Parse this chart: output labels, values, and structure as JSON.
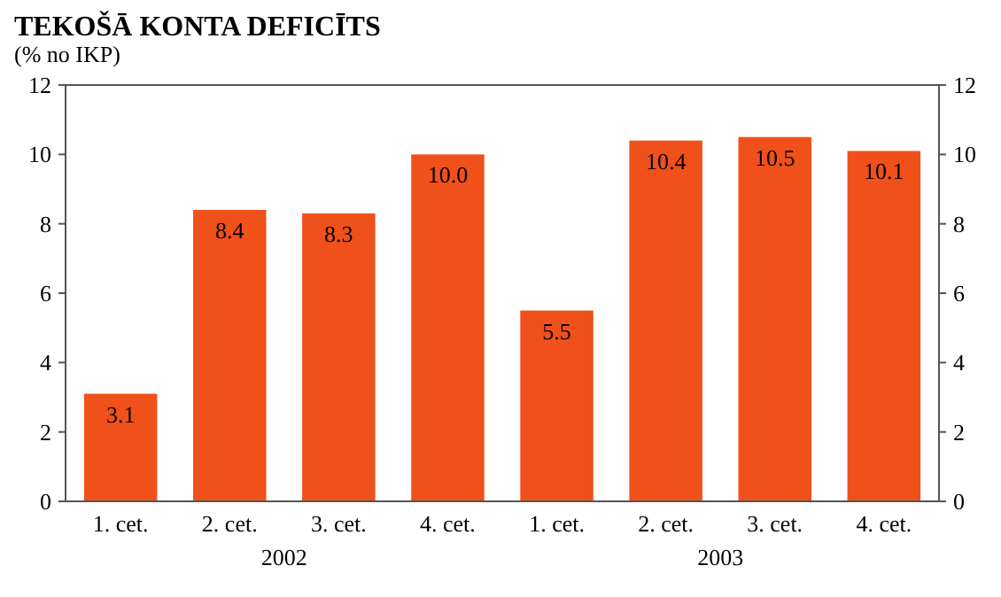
{
  "chart_data": {
    "type": "bar",
    "title": "TEKOŠĀ KONTA DEFICĪTS",
    "subtitle": "(% no IKP)",
    "categories": [
      "1. cet.",
      "2. cet.",
      "3. cet.",
      "4. cet.",
      "1. cet.",
      "2. cet.",
      "3. cet.",
      "4. cet."
    ],
    "values": [
      3.1,
      8.4,
      8.3,
      10.0,
      5.5,
      10.4,
      10.5,
      10.1
    ],
    "value_labels": [
      "3.1",
      "8.4",
      "8.3",
      "10.0",
      "5.5",
      "10.4",
      "10.5",
      "10.1"
    ],
    "color": "#f0501a",
    "ylim": [
      0,
      12
    ],
    "yticks": [
      0,
      2,
      4,
      6,
      8,
      10,
      12
    ],
    "y2lim": [
      0,
      12
    ],
    "y2ticks": [
      0,
      2,
      4,
      6,
      8,
      10,
      12
    ],
    "annotations": [
      "2002",
      "2003"
    ],
    "grid": false
  }
}
